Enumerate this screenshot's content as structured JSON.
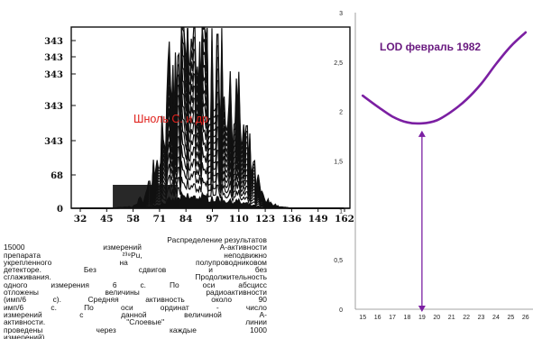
{
  "chart_data": [
    {
      "type": "line",
      "series_style": "stacked layered histograms (black)",
      "x_ticks": [
        "32",
        "45",
        "58",
        "71",
        "84",
        "97",
        "110",
        "123",
        "136",
        "149",
        "162"
      ],
      "y_ticks": [
        "0",
        "68",
        "343",
        "343",
        "343",
        "343",
        "343"
      ],
      "annotation": "Шноль С. и др",
      "annotation_color": "#e0201b",
      "envelope_x": [
        32,
        45,
        58,
        64,
        71,
        76,
        80,
        84,
        88,
        92,
        97,
        103,
        110,
        118,
        123,
        130,
        136,
        149,
        162
      ],
      "envelope_y": [
        0,
        0,
        3,
        25,
        120,
        220,
        290,
        330,
        345,
        330,
        300,
        250,
        180,
        60,
        15,
        3,
        0,
        0,
        0
      ]
    },
    {
      "type": "line",
      "title": "LOD февраль 1982",
      "title_color": "#6a1b80",
      "series_color": "#7b1fa2",
      "x": [
        15,
        16,
        17,
        18,
        19,
        20,
        21,
        22,
        23,
        24,
        25,
        26
      ],
      "values": [
        2.16,
        2.05,
        1.95,
        1.89,
        1.88,
        1.91,
        2.0,
        2.12,
        2.28,
        2.48,
        2.66,
        2.8
      ],
      "xlim": [
        14.5,
        26.5
      ],
      "ylim": [
        0,
        3
      ],
      "y_ticks": [
        "0",
        "0,5",
        "1",
        "1,5",
        "2",
        "2,5",
        "3"
      ],
      "x_ticks": [
        "15",
        "16",
        "17",
        "18",
        "19",
        "20",
        "21",
        "22",
        "23",
        "24",
        "25",
        "26"
      ],
      "marker_x": 19
    }
  ],
  "caption": {
    "lines": [
      "Распределение результатов",
      "15000 измерений А-активности",
      "препарата ²³⁹Pu, неподвижно",
      "укрепленного на полупроводниковом",
      "детекторе. Без сдвигов и без",
      "сглаживания. Продолжительность",
      "одного измерения 6 с. По оси абсцисс",
      "отложены величины радиоактивности",
      "(имп/6 с). Средняя активность около 90",
      "имп/6 с. По оси ординат - число",
      "измерений с данной величиной А-",
      "активности. \"Слоевые\" линии",
      "проведены через каждые 1000",
      "измерений)"
    ]
  }
}
